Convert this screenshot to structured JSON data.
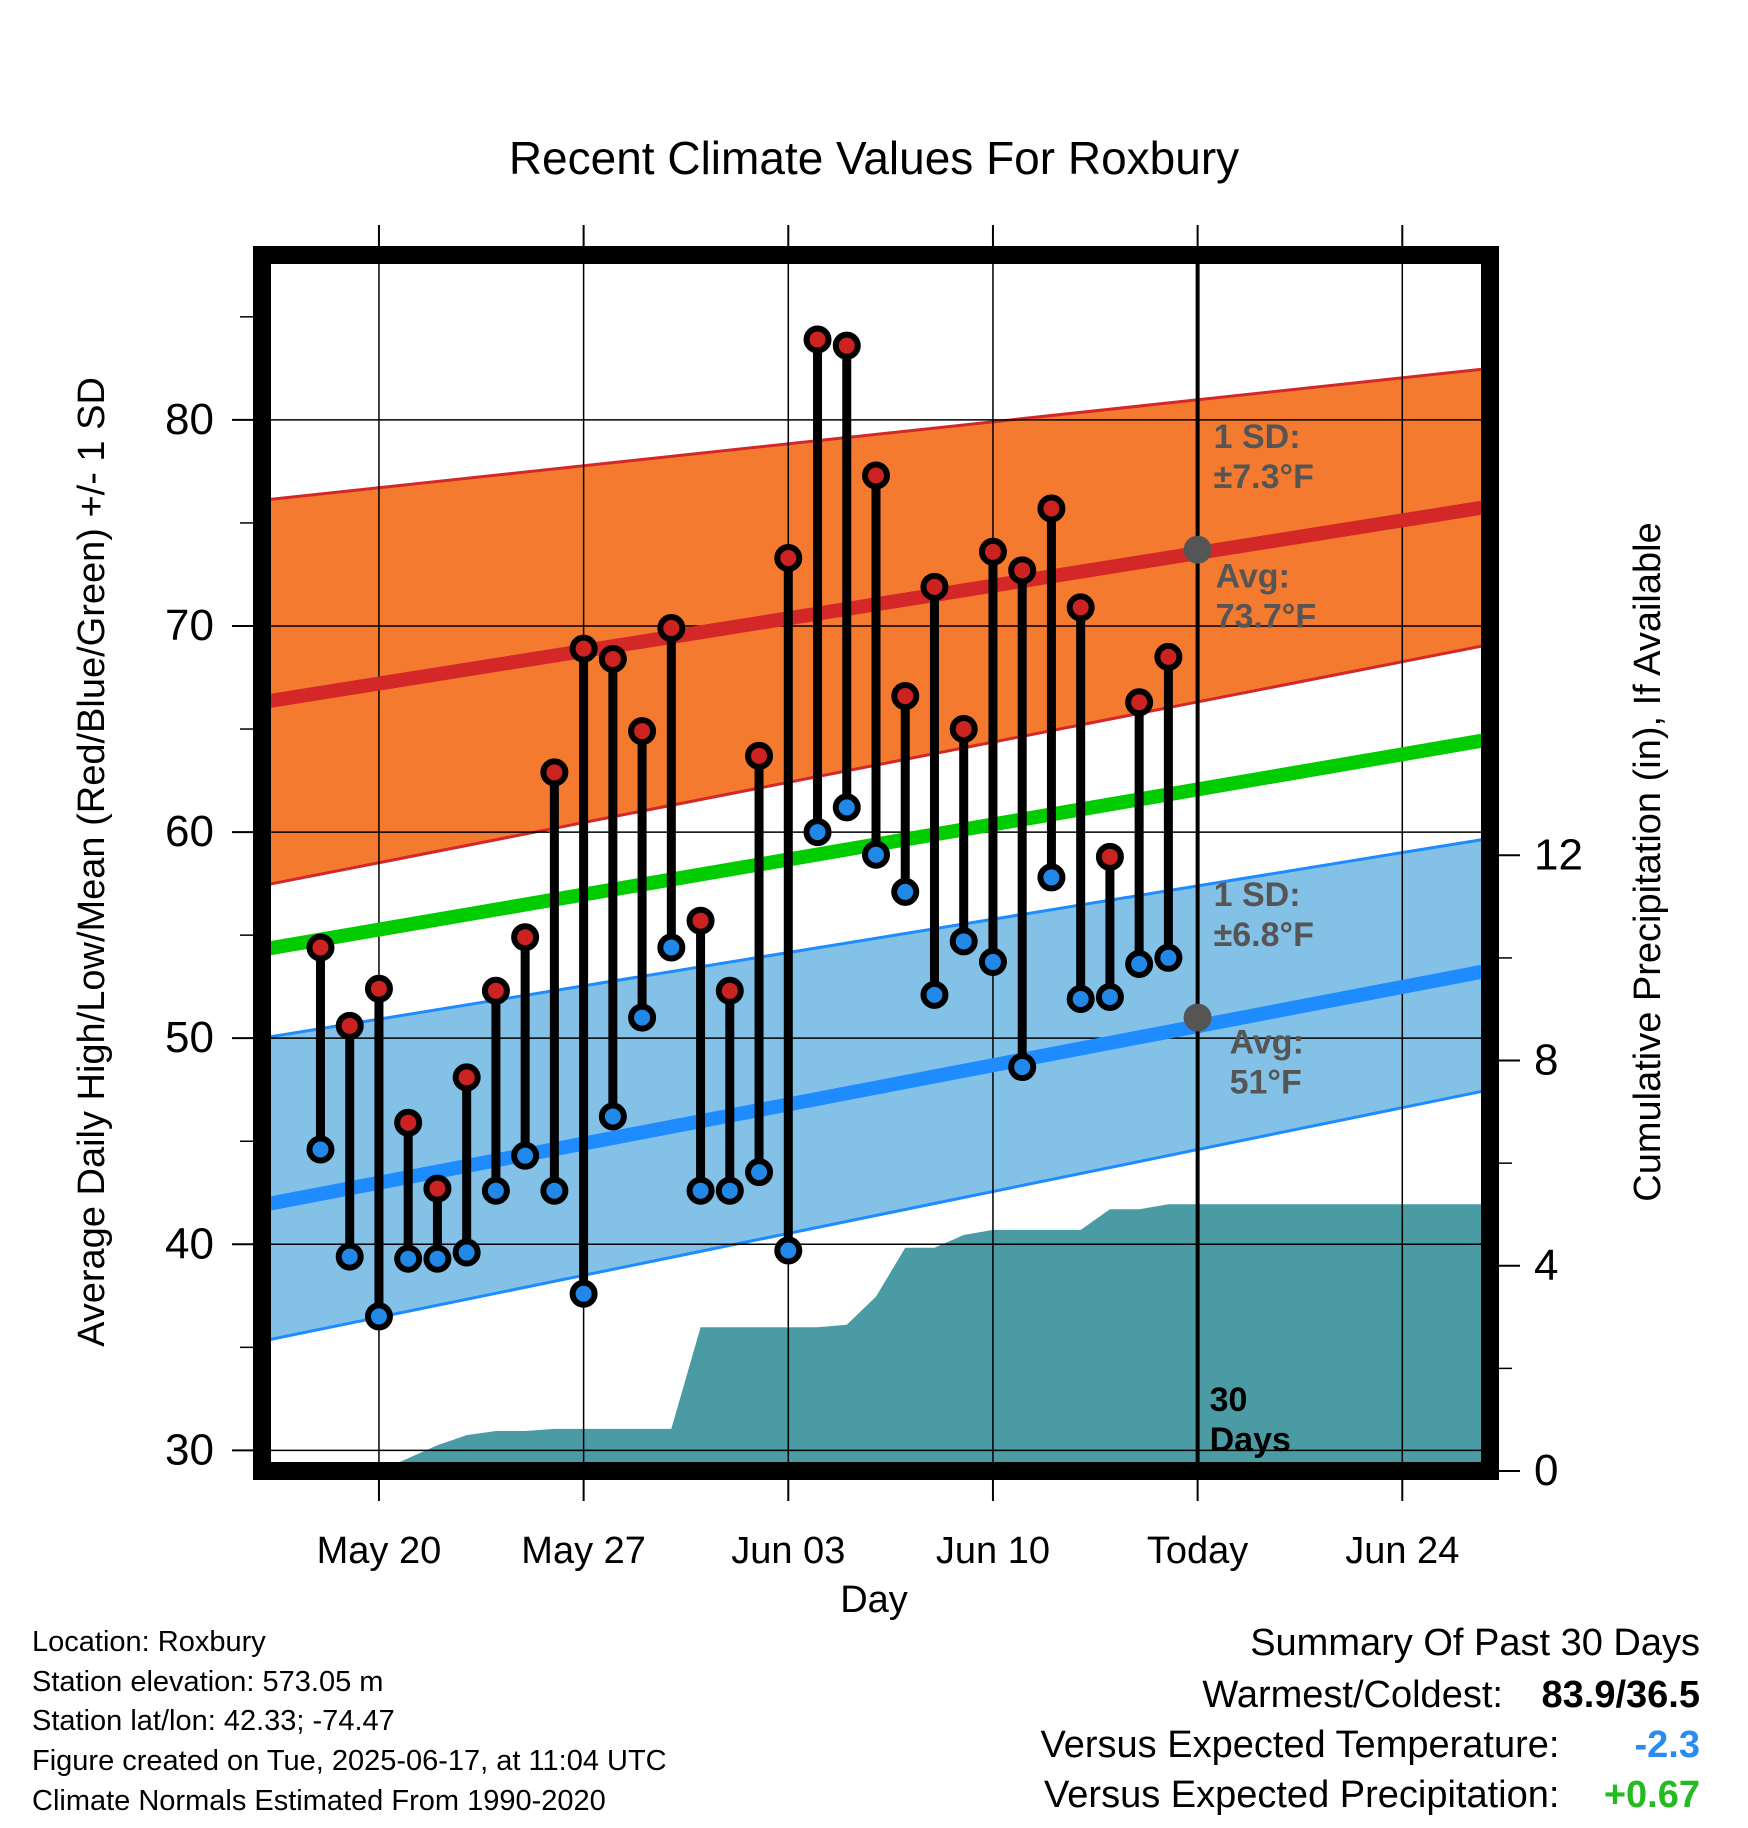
{
  "chart_data": {
    "type": "line",
    "title": "Recent Climate Values For Roxbury",
    "xlabel": "Day",
    "ylabel": "Average Daily High/Low/Mean (Red/Blue/Green) +/- 1 SD",
    "y2label": "Cumulative Precipitation (in), If Available",
    "xlim": [
      "2025-05-16",
      "2025-06-27"
    ],
    "ylim": [
      29,
      88
    ],
    "y2lim": [
      0,
      23.7
    ],
    "y_ticks": [
      30,
      40,
      50,
      60,
      70,
      80
    ],
    "y_tick_labels": [
      "30",
      "40",
      "50",
      "60",
      "70",
      "80"
    ],
    "y2_ticks": [
      0,
      4,
      8,
      12
    ],
    "y2_tick_labels": [
      "0",
      "4",
      "8",
      "12"
    ],
    "x_ticks": [
      {
        "date": "2025-05-20",
        "label": "May 20"
      },
      {
        "date": "2025-05-27",
        "label": "May 27"
      },
      {
        "date": "2025-06-03",
        "label": "Jun 03"
      },
      {
        "date": "2025-06-10",
        "label": "Jun 10"
      },
      {
        "date": "2025-06-17",
        "label": "Today"
      },
      {
        "date": "2025-06-24",
        "label": "Jun 24"
      }
    ],
    "grid": true,
    "today_date": "2025-06-17",
    "today_label_line1": "30",
    "today_label_line2": "Days",
    "daily_dates": [
      "2025-05-18",
      "2025-05-19",
      "2025-05-20",
      "2025-05-21",
      "2025-05-22",
      "2025-05-23",
      "2025-05-24",
      "2025-05-25",
      "2025-05-26",
      "2025-05-27",
      "2025-05-28",
      "2025-05-29",
      "2025-05-30",
      "2025-05-31",
      "2025-06-01",
      "2025-06-02",
      "2025-06-03",
      "2025-06-04",
      "2025-06-05",
      "2025-06-06",
      "2025-06-07",
      "2025-06-08",
      "2025-06-09",
      "2025-06-10",
      "2025-06-11",
      "2025-06-12",
      "2025-06-13",
      "2025-06-14",
      "2025-06-15",
      "2025-06-16"
    ],
    "daily_high": [
      54.4,
      50.6,
      52.4,
      45.9,
      42.7,
      48.1,
      52.3,
      54.9,
      62.9,
      68.9,
      68.4,
      64.9,
      69.9,
      55.7,
      52.3,
      63.7,
      73.3,
      83.9,
      83.6,
      77.3,
      66.6,
      71.9,
      65.0,
      73.6,
      72.7,
      75.7,
      70.9,
      58.8,
      66.3,
      68.5
    ],
    "daily_low": [
      44.6,
      39.4,
      36.5,
      39.3,
      39.3,
      39.6,
      42.6,
      44.3,
      42.6,
      37.6,
      46.2,
      51.0,
      54.4,
      42.6,
      42.6,
      43.5,
      39.7,
      60.0,
      61.2,
      58.9,
      57.1,
      52.1,
      54.7,
      53.7,
      48.6,
      57.8,
      51.9,
      52.0,
      53.6,
      53.9
    ],
    "normal_dates": [
      "2025-05-16",
      "2025-06-27"
    ],
    "normal_high_avg": [
      66.3,
      75.8
    ],
    "normal_high_sd_upper": [
      76.1,
      82.5
    ],
    "normal_high_sd_lower": [
      57.4,
      69.1
    ],
    "normal_mean_avg": [
      54.3,
      64.5
    ],
    "normal_low_avg": [
      41.9,
      53.3
    ],
    "normal_low_sd_upper": [
      50.0,
      59.7
    ],
    "normal_low_sd_lower": [
      35.3,
      47.5
    ],
    "precip_dates": [
      "2025-05-16",
      "2025-05-17",
      "2025-05-18",
      "2025-05-19",
      "2025-05-20",
      "2025-05-21",
      "2025-05-22",
      "2025-05-23",
      "2025-05-24",
      "2025-05-25",
      "2025-05-26",
      "2025-05-27",
      "2025-05-28",
      "2025-05-29",
      "2025-05-30",
      "2025-05-31",
      "2025-06-01",
      "2025-06-02",
      "2025-06-03",
      "2025-06-04",
      "2025-06-05",
      "2025-06-06",
      "2025-06-07",
      "2025-06-08",
      "2025-06-09",
      "2025-06-10",
      "2025-06-11",
      "2025-06-12",
      "2025-06-13",
      "2025-06-14",
      "2025-06-15",
      "2025-06-16",
      "2025-06-17",
      "2025-06-27"
    ],
    "precip_cumulative": [
      0,
      0,
      0,
      0,
      0,
      0.25,
      0.5,
      0.7,
      0.78,
      0.78,
      0.82,
      0.82,
      0.82,
      0.82,
      0.82,
      2.8,
      2.8,
      2.8,
      2.8,
      2.8,
      2.85,
      3.4,
      4.35,
      4.35,
      4.6,
      4.7,
      4.7,
      4.7,
      4.7,
      5.1,
      5.1,
      5.2,
      5.2,
      5.2
    ],
    "annotations": {
      "high_sd_line1": "1 SD:",
      "high_sd_line2": "±7.3°F",
      "high_avg_line1": "Avg:",
      "high_avg_line2": "73.7°F",
      "high_avg_value": 73.7,
      "low_sd_line1": "1 SD:",
      "low_sd_line2": "±6.8°F",
      "low_avg_line1": "Avg:",
      "low_avg_line2": "51°F",
      "low_avg_value": 51.0
    },
    "colors": {
      "high_band": "#f47a30",
      "high_line": "#d42828",
      "mean_line": "#00cc00",
      "low_band": "#84c1e7",
      "low_line": "#1e8cff",
      "precip_fill": "#4a9ba4",
      "high_marker": "#cc2222",
      "low_marker": "#2288e8",
      "annotation_text": "#555555",
      "avg_dot": "#555555"
    }
  },
  "info": {
    "location": "Location: Roxbury",
    "elevation": "Station elevation: 573.05 m",
    "latlon": "Station lat/lon: 42.33; -74.47",
    "created": "Figure created on Tue, 2025-06-17, at 11:04 UTC",
    "normals": "Climate Normals Estimated From 1990-2020"
  },
  "summary": {
    "title": "Summary Of Past 30 Days",
    "warm_cold_label": "Warmest/Coldest:",
    "warm_cold_value": "83.9/36.5",
    "temp_label": "Versus Expected Temperature:",
    "temp_value": "-2.3",
    "temp_color": "#2a8cf0",
    "precip_label": "Versus Expected Precipitation:",
    "precip_value": "+0.67",
    "precip_color": "#22bb22"
  }
}
